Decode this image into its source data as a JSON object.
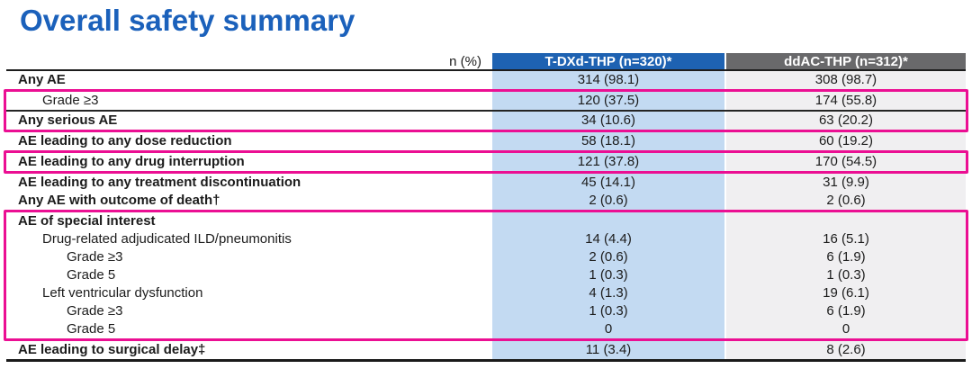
{
  "title": "Overall safety summary",
  "colors": {
    "title_blue": "#1b61bb",
    "header_blue": "#1e62b2",
    "header_gray": "#69696b",
    "body_blue": "#c3daf2",
    "body_gray": "#f0eff1",
    "highlight_pink": "#eb0f93",
    "text": "#1c1c1c"
  },
  "table": {
    "corner_label": "n (%)",
    "columns": [
      {
        "label": "T-DXd-THP (n=320)*"
      },
      {
        "label": "ddAC-THP (n=312)*"
      }
    ],
    "groups": [
      {
        "highlight": false,
        "rows": [
          {
            "label": "Any AE",
            "indent": 0,
            "bold": true,
            "values": [
              "314 (98.1)",
              "308 (98.7)"
            ]
          }
        ]
      },
      {
        "highlight": true,
        "rows": [
          {
            "label": "Grade ≥3",
            "indent": 1,
            "bold": false,
            "values": [
              "120 (37.5)",
              "174 (55.8)"
            ],
            "divider_below": true
          },
          {
            "label": "Any serious AE",
            "indent": 0,
            "bold": true,
            "values": [
              "34 (10.6)",
              "63 (20.2)"
            ]
          }
        ]
      },
      {
        "highlight": false,
        "rows": [
          {
            "label": "AE leading to any dose reduction",
            "indent": 0,
            "bold": true,
            "values": [
              "58 (18.1)",
              "60 (19.2)"
            ]
          }
        ]
      },
      {
        "highlight": true,
        "rows": [
          {
            "label": "AE leading to any drug interruption",
            "indent": 0,
            "bold": true,
            "values": [
              "121 (37.8)",
              "170 (54.5)"
            ]
          }
        ]
      },
      {
        "highlight": false,
        "rows": [
          {
            "label": "AE leading to any treatment discontinuation",
            "indent": 0,
            "bold": true,
            "values": [
              "45 (14.1)",
              "31 (9.9)"
            ]
          },
          {
            "label": "Any AE with outcome of death†",
            "indent": 0,
            "bold": true,
            "values": [
              "2 (0.6)",
              "2 (0.6)"
            ]
          }
        ]
      },
      {
        "highlight": true,
        "rows": [
          {
            "label": "AE of special interest",
            "indent": 0,
            "bold": true,
            "values": [
              "",
              ""
            ]
          },
          {
            "label": "Drug-related adjudicated ILD/pneumonitis",
            "indent": 1,
            "bold": false,
            "values": [
              "14 (4.4)",
              "16 (5.1)"
            ]
          },
          {
            "label": "Grade ≥3",
            "indent": 2,
            "bold": false,
            "values": [
              "2 (0.6)",
              "6 (1.9)"
            ]
          },
          {
            "label": "Grade 5",
            "indent": 2,
            "bold": false,
            "values": [
              "1 (0.3)",
              "1 (0.3)"
            ]
          },
          {
            "label": "Left ventricular dysfunction",
            "indent": 1,
            "bold": false,
            "values": [
              "4 (1.3)",
              "19 (6.1)"
            ]
          },
          {
            "label": "Grade ≥3",
            "indent": 2,
            "bold": false,
            "values": [
              "1 (0.3)",
              "6 (1.9)"
            ]
          },
          {
            "label": "Grade 5",
            "indent": 2,
            "bold": false,
            "values": [
              "0",
              "0"
            ]
          }
        ]
      },
      {
        "highlight": false,
        "rows": [
          {
            "label": "AE leading to surgical delay‡",
            "indent": 0,
            "bold": true,
            "values": [
              "11 (3.4)",
              "8 (2.6)"
            ]
          }
        ]
      }
    ]
  }
}
